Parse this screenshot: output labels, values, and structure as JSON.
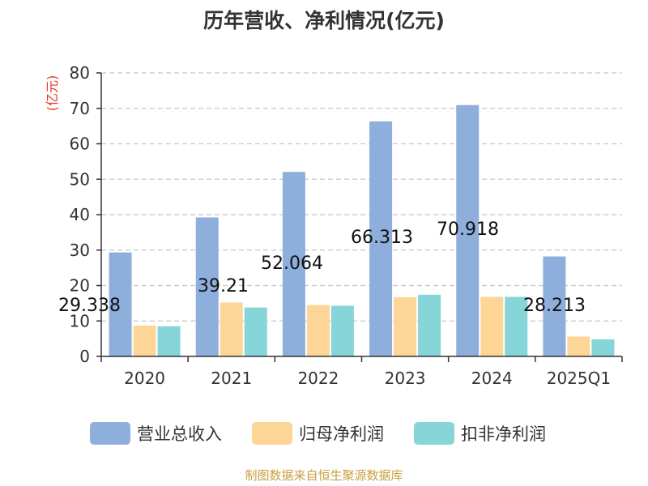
{
  "chart_data": {
    "type": "bar",
    "title": "历年营收、净利情况(亿元)",
    "ylabel": "(亿元)",
    "ylim": [
      0,
      80
    ],
    "yticks": [
      0,
      10,
      20,
      30,
      40,
      50,
      60,
      70,
      80
    ],
    "grid": true,
    "legend_position": "bottom",
    "categories": [
      "2020",
      "2021",
      "2022",
      "2023",
      "2024",
      "2025Q1"
    ],
    "series": [
      {
        "name": "营业总收入",
        "color": "#8eaedb",
        "values": [
          29.338,
          39.21,
          52.064,
          66.313,
          70.918,
          28.213
        ]
      },
      {
        "name": "归母净利润",
        "color": "#fdd597",
        "values": [
          8.7,
          15.2,
          14.5,
          16.7,
          16.8,
          5.6
        ]
      },
      {
        "name": "扣非净利润",
        "color": "#86d5d8",
        "values": [
          8.5,
          13.8,
          14.3,
          17.4,
          16.8,
          4.8
        ]
      }
    ],
    "data_labels": [
      "29.338",
      "39.21",
      "52.064",
      "66.313",
      "70.918",
      "28.213"
    ]
  },
  "colors": {
    "ylabel": "#e8342b",
    "source": "#c8a040",
    "grid": "#c8c8c8",
    "axis": "#333333"
  },
  "source": "制图数据来自恒生聚源数据库"
}
